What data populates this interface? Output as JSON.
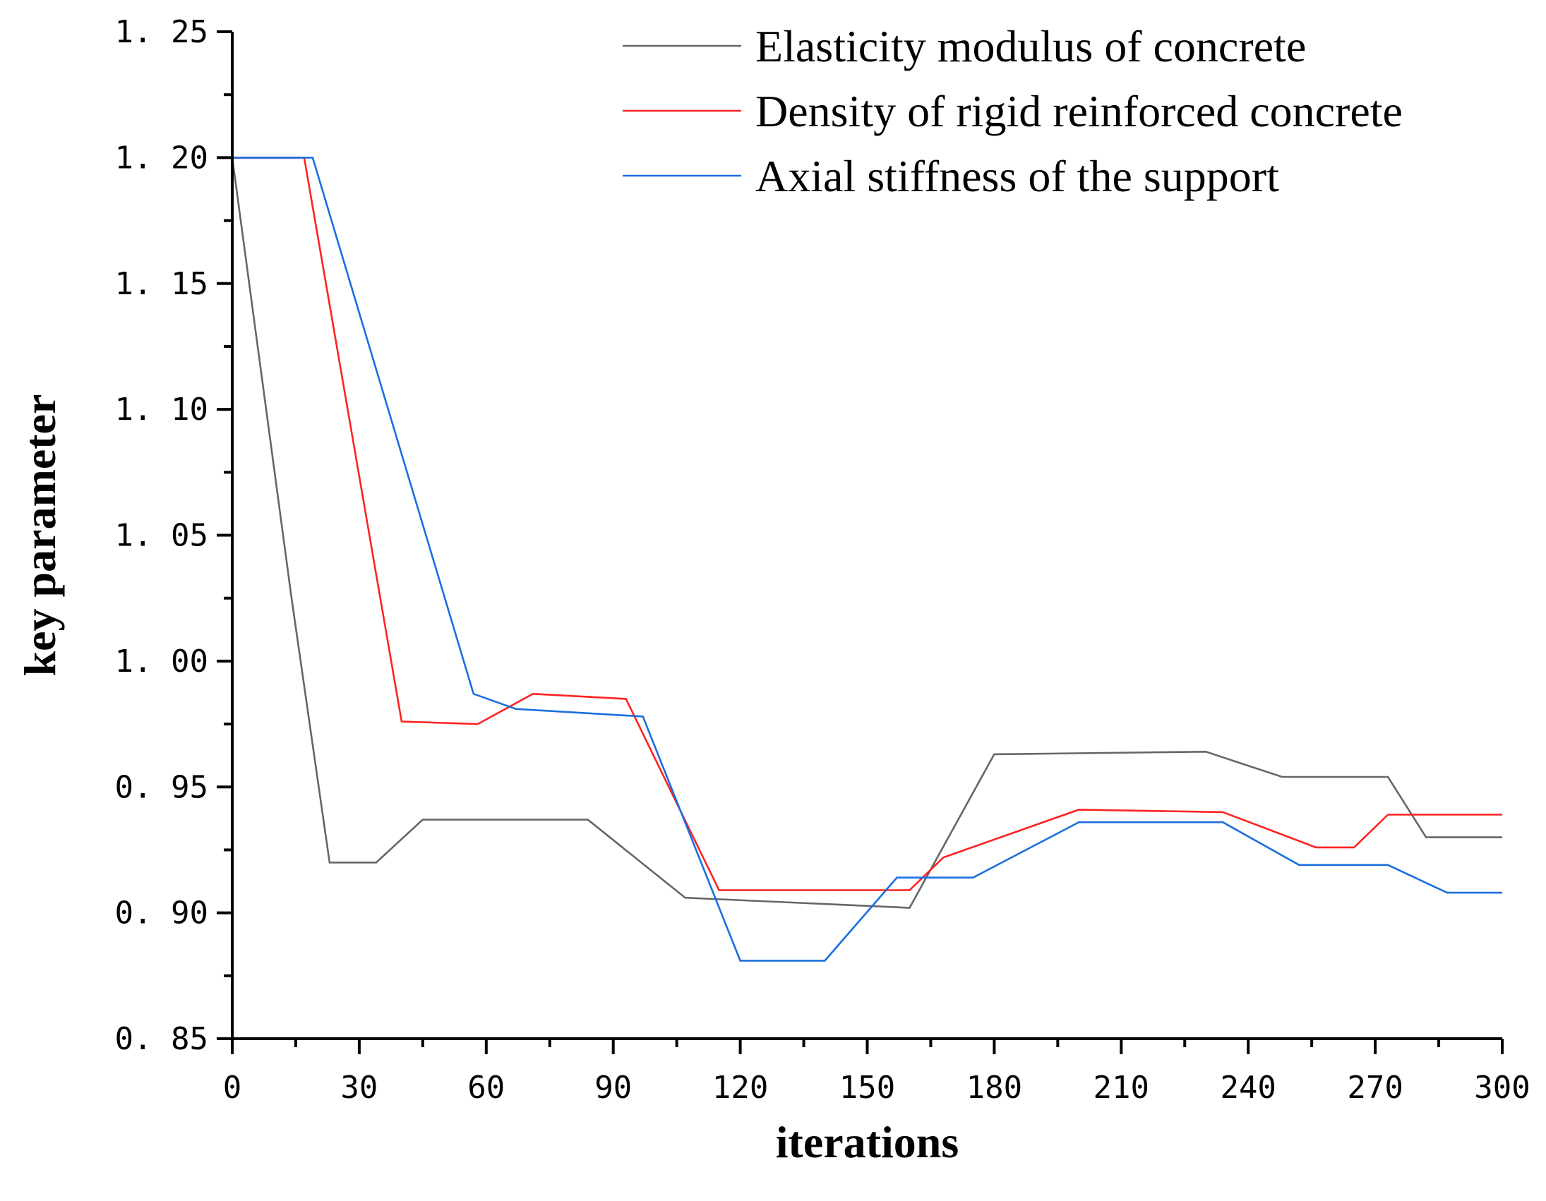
{
  "chart_data": {
    "type": "line",
    "title": "",
    "xlabel": "iterations",
    "ylabel": "key parameter",
    "xlim": [
      0,
      300
    ],
    "ylim": [
      0.85,
      1.25
    ],
    "xticks": [
      0,
      30,
      60,
      90,
      120,
      150,
      180,
      210,
      240,
      270,
      300
    ],
    "xtick_labels": [
      "0",
      "30",
      "60",
      "90",
      "120",
      "150",
      "180",
      "210",
      "240",
      "270",
      "300"
    ],
    "yticks": [
      0.85,
      0.9,
      0.95,
      1.0,
      1.05,
      1.1,
      1.15,
      1.2,
      1.25
    ],
    "ytick_labels": [
      "0. 85",
      "0. 90",
      "0. 95",
      "1. 00",
      "1. 05",
      "1. 10",
      "1. 15",
      "1. 20",
      "1. 25"
    ],
    "grid": false,
    "legend_position": "top-right",
    "series": [
      {
        "name": "Elasticity modulus of concrete",
        "color": "#666666",
        "x": [
          0,
          14,
          23,
          34,
          45,
          84,
          107,
          160,
          180,
          230,
          248,
          273,
          282,
          300
        ],
        "y": [
          1.2,
          1.025,
          0.92,
          0.92,
          0.937,
          0.937,
          0.906,
          0.902,
          0.963,
          0.964,
          0.954,
          0.954,
          0.93,
          0.93
        ]
      },
      {
        "name": "Density of rigid reinforced concrete",
        "color": "#ff2222",
        "x": [
          0,
          17,
          40,
          58,
          71,
          93,
          115,
          160,
          168,
          200,
          234,
          256,
          265,
          273,
          300
        ],
        "y": [
          1.2,
          1.2,
          0.976,
          0.975,
          0.987,
          0.985,
          0.909,
          0.909,
          0.922,
          0.941,
          0.94,
          0.926,
          0.926,
          0.939,
          0.939
        ]
      },
      {
        "name": "Axial stiffness of the support",
        "color": "#1a6ee0",
        "x": [
          0,
          19,
          57,
          67,
          97,
          120,
          140,
          157,
          175,
          200,
          234,
          252,
          273,
          287,
          300
        ],
        "y": [
          1.2,
          1.2,
          0.987,
          0.981,
          0.978,
          0.881,
          0.881,
          0.914,
          0.914,
          0.936,
          0.936,
          0.919,
          0.919,
          0.908,
          0.908
        ]
      }
    ]
  }
}
